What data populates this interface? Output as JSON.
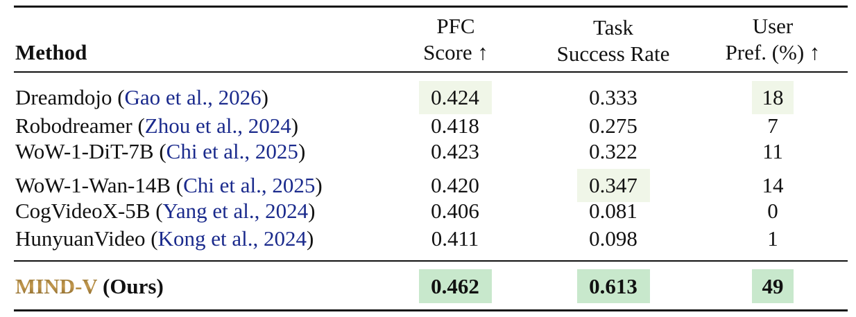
{
  "colors": {
    "highlight_light": "#f0f6e8",
    "highlight_strong": "#c8e8cc",
    "citation": "#1a2a8c",
    "brand_gold": "#a8823c"
  },
  "header": {
    "method": "Method",
    "pfc_line1": "PFC",
    "pfc_line2": "Score ↑",
    "task_line1": "Task",
    "task_line2": "Success Rate",
    "user_line1": "User",
    "user_line2": "Pref. (%) ↑"
  },
  "rows": [
    {
      "name": "Dreamdojo (",
      "cite": "Gao et al., 2026",
      "close": ")",
      "pfc": "0.424",
      "task": "0.333",
      "user": "18"
    },
    {
      "name": "Robodreamer (",
      "cite": "Zhou et al., 2024",
      "close": ")",
      "pfc": "0.418",
      "task": "0.275",
      "user": "7"
    },
    {
      "name": "WoW-1-DiT-7B (",
      "cite": "Chi et al., 2025",
      "close": ")",
      "pfc": "0.423",
      "task": "0.322",
      "user": "11"
    },
    {
      "name": "WoW-1-Wan-14B (",
      "cite": "Chi et al., 2025",
      "close": ")",
      "pfc": "0.420",
      "task": "0.347",
      "user": "14"
    },
    {
      "name": "CogVideoX-5B (",
      "cite": "Yang et al., 2024",
      "close": ")",
      "pfc": "0.406",
      "task": "0.081",
      "user": "0"
    },
    {
      "name": "HunyuanVideo (",
      "cite": "Kong et al., 2024",
      "close": ")",
      "pfc": "0.411",
      "task": "0.098",
      "user": "1"
    }
  ],
  "ours": {
    "brand": "MIND-V",
    "suffix": " (Ours)",
    "pfc": "0.462",
    "task": "0.613",
    "user": "49"
  }
}
